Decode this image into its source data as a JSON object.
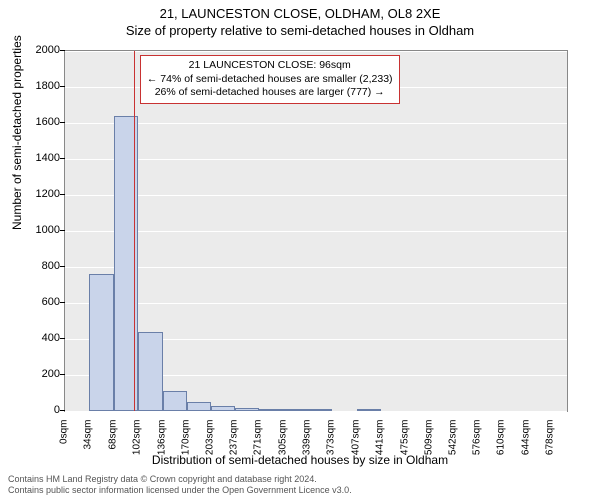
{
  "title_line1": "21, LAUNCESTON CLOSE, OLDHAM, OL8 2XE",
  "title_line2": "Size of property relative to semi-detached houses in Oldham",
  "chart": {
    "type": "histogram",
    "background_color": "#ebebeb",
    "grid_color": "#ffffff",
    "border_color": "#888888",
    "bar_fill": "#c9d4ea",
    "bar_stroke": "#6a7fa8",
    "refline_color": "#c83232",
    "refline_x": 96,
    "ylim": [
      0,
      2000
    ],
    "ytick_step": 200,
    "yticks": [
      0,
      200,
      400,
      600,
      800,
      1000,
      1200,
      1400,
      1600,
      1800,
      2000
    ],
    "xlim": [
      0,
      700
    ],
    "xticks": [
      0,
      34,
      68,
      102,
      136,
      170,
      203,
      237,
      271,
      305,
      339,
      373,
      407,
      441,
      475,
      509,
      542,
      576,
      610,
      644,
      678
    ],
    "xtick_labels": [
      "0sqm",
      "34sqm",
      "68sqm",
      "102sqm",
      "136sqm",
      "170sqm",
      "203sqm",
      "237sqm",
      "271sqm",
      "305sqm",
      "339sqm",
      "373sqm",
      "407sqm",
      "441sqm",
      "475sqm",
      "509sqm",
      "542sqm",
      "576sqm",
      "610sqm",
      "644sqm",
      "678sqm"
    ],
    "bars": [
      {
        "x0": 34,
        "x1": 68,
        "y": 760
      },
      {
        "x0": 68,
        "x1": 102,
        "y": 1640
      },
      {
        "x0": 102,
        "x1": 136,
        "y": 440
      },
      {
        "x0": 136,
        "x1": 170,
        "y": 110
      },
      {
        "x0": 170,
        "x1": 203,
        "y": 50
      },
      {
        "x0": 203,
        "x1": 237,
        "y": 30
      },
      {
        "x0": 237,
        "x1": 271,
        "y": 18
      },
      {
        "x0": 271,
        "x1": 305,
        "y": 10
      },
      {
        "x0": 305,
        "x1": 339,
        "y": 8
      },
      {
        "x0": 339,
        "x1": 373,
        "y": 4
      },
      {
        "x0": 407,
        "x1": 441,
        "y": 4
      }
    ],
    "ylabel": "Number of semi-detached properties",
    "xlabel": "Distribution of semi-detached houses by size in Oldham",
    "label_fontsize": 12,
    "tick_fontsize": 11
  },
  "annotation": {
    "line1": "21 LAUNCESTON CLOSE: 96sqm",
    "line2": "← 74% of semi-detached houses are smaller (2,233)",
    "line3": "26% of semi-detached houses are larger (777) →",
    "border_color": "#c83232",
    "background_color": "#ffffff"
  },
  "footer": {
    "line1": "Contains HM Land Registry data © Crown copyright and database right 2024.",
    "line2": "Contains public sector information licensed under the Open Government Licence v3.0."
  }
}
